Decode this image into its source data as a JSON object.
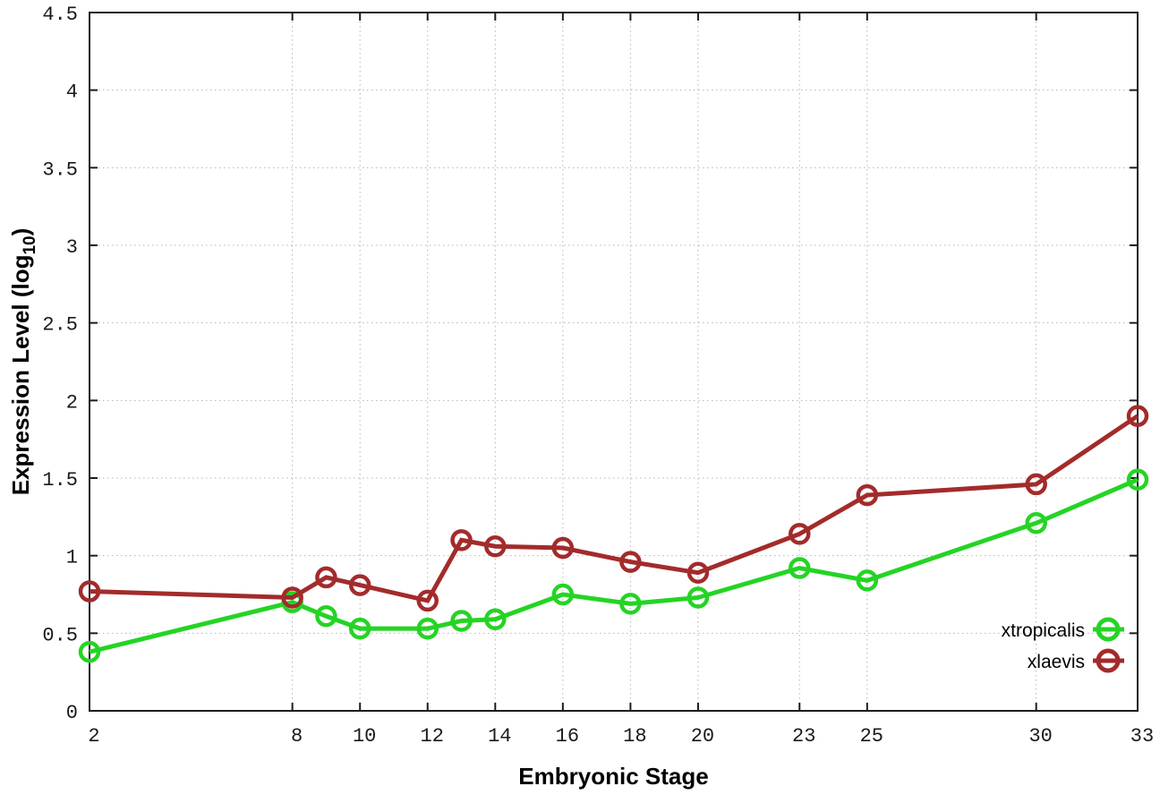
{
  "chart_data": {
    "type": "line",
    "title": "",
    "xlabel": "Embryonic Stage",
    "ylabel_parts": {
      "main": "Expression Level (log",
      "subscript": "10",
      "suffix": ")"
    },
    "x": [
      2,
      8,
      9,
      10,
      12,
      13,
      14,
      16,
      18,
      20,
      23,
      25,
      30,
      33
    ],
    "series": [
      {
        "name": "xtropicalis",
        "color": "#24d424",
        "values": [
          0.38,
          0.7,
          0.61,
          0.53,
          0.53,
          0.58,
          0.59,
          0.75,
          0.69,
          0.73,
          0.92,
          0.84,
          1.21,
          1.49
        ]
      },
      {
        "name": "xlaevis",
        "color": "#a32b2b",
        "values": [
          0.77,
          0.73,
          0.86,
          0.81,
          0.71,
          1.1,
          1.06,
          1.05,
          0.96,
          0.89,
          1.14,
          1.39,
          1.46,
          1.9
        ]
      }
    ],
    "xlim": [
      2,
      33
    ],
    "ylim": [
      0,
      4.5
    ],
    "x_tick_values": [
      2,
      8,
      10,
      12,
      14,
      16,
      18,
      20,
      23,
      25,
      30,
      33
    ],
    "x_tick_labels": [
      "2",
      "8",
      "10",
      "12",
      "14",
      "16",
      "18",
      "20",
      "23",
      "25",
      "30",
      "33"
    ],
    "y_tick_values": [
      0,
      0.5,
      1,
      1.5,
      2,
      2.5,
      3,
      3.5,
      4,
      4.5
    ],
    "y_tick_labels": [
      "0",
      "0.5",
      "1",
      "1.5",
      "2",
      "2.5",
      "3",
      "3.5",
      "4",
      "4.5"
    ],
    "grid": true,
    "legend_position": "bottom-right",
    "legend_entries": [
      "xtropicalis",
      "xlaevis"
    ],
    "marker": "open-circle",
    "colors": {
      "background": "#ffffff",
      "border": "#1c1c1c",
      "grid": "#b4b4b4",
      "text": "#1a1a1a"
    }
  }
}
